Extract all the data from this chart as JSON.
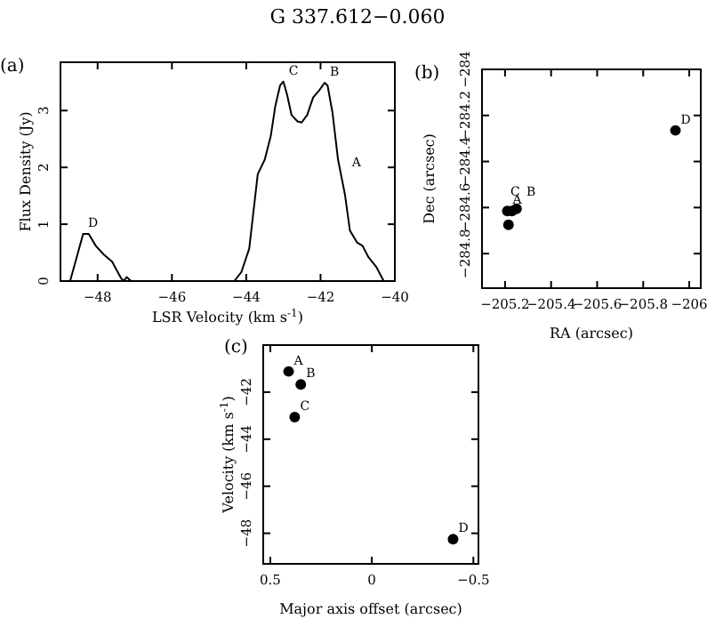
{
  "chart_data": [
    {
      "type": "line",
      "title": "G 337.612−0.060",
      "xlabel": "LSR Velocity (km s$^{-1}$)",
      "ylabel": "Flux Density (Jy)",
      "xlim": [
        -49,
        -40
      ],
      "ylim": [
        0,
        3.85
      ],
      "xticks": [
        -48,
        -46,
        -44,
        -42,
        -40
      ],
      "yticks": [
        0,
        1,
        2,
        3
      ],
      "annotations": [
        "(a)",
        {
          "text": "D",
          "x": -48.4,
          "y": 0.83
        },
        {
          "text": "C",
          "x": -43.0,
          "y": 3.51
        },
        {
          "text": "B",
          "x": -41.89,
          "y": 3.49
        },
        {
          "text": "A",
          "x": -41.3,
          "y": 1.9
        }
      ],
      "series": [
        {
          "color": "#000000",
          "x": [
            -48.74,
            -48.39,
            -48.24,
            -48.05,
            -47.84,
            -47.61,
            -47.37,
            -47.3,
            -47.22,
            -47.1,
            -46.0,
            -45.0,
            -44.32,
            -44.13,
            -43.92,
            -43.69,
            -43.5,
            -43.34,
            -43.22,
            -43.09,
            -43.0,
            -42.9,
            -42.78,
            -42.62,
            -42.51,
            -42.36,
            -42.2,
            -42.04,
            -41.89,
            -41.81,
            -41.68,
            -41.53,
            -41.34,
            -41.21,
            -41.02,
            -40.87,
            -40.71,
            -40.5,
            -40.3
          ],
          "values": [
            0,
            0.83,
            0.83,
            0.62,
            0.47,
            0.34,
            0.05,
            0,
            0.07,
            0,
            0,
            0,
            0,
            0.16,
            0.57,
            1.88,
            2.14,
            2.55,
            3.07,
            3.44,
            3.51,
            3.28,
            2.92,
            2.81,
            2.79,
            2.92,
            3.23,
            3.35,
            3.49,
            3.44,
            2.97,
            2.14,
            1.51,
            0.89,
            0.68,
            0.62,
            0.42,
            0.25,
            0
          ]
        }
      ]
    },
    {
      "type": "scatter",
      "xlabel": "RA (arcsec)",
      "ylabel": "Dec (arcsec)",
      "xlim": [
        -205.1,
        -206.05
      ],
      "ylim": [
        -284.95,
        -284
      ],
      "xticks": [
        -205.2,
        -205.4,
        -205.6,
        -205.8,
        -206
      ],
      "yticks": [
        -284.8,
        -284.6,
        -284.4,
        -284.2,
        -284
      ],
      "marker": "circle",
      "annotations": [
        "(b)",
        {
          "text": "C",
          "x": -205.2,
          "y": -284.58
        },
        {
          "text": "B",
          "x": -205.27,
          "y": -284.58
        },
        {
          "text": "A",
          "x": -205.21,
          "y": -284.615
        },
        {
          "text": "D",
          "x": -205.94,
          "y": -284.265
        }
      ],
      "series": [
        {
          "color": "#000000",
          "x": [
            -205.21,
            -205.23,
            -205.25,
            -205.215,
            -205.94
          ],
          "values": [
            -284.615,
            -284.615,
            -284.605,
            -284.675,
            -284.265
          ]
        }
      ]
    },
    {
      "type": "scatter",
      "xlabel": "Major axis offset (arcsec)",
      "ylabel": "Velocity (km s$^{-1}$)",
      "xlim": [
        0.535,
        -0.525
      ],
      "ylim": [
        -49.3,
        -40
      ],
      "xticks": [
        0.5,
        0,
        -0.5
      ],
      "yticks": [
        -48,
        -46,
        -44,
        -42
      ],
      "marker": "circle",
      "annotations": [
        "(c)",
        {
          "text": "A",
          "x": 0.41,
          "y": -41.12
        },
        {
          "text": "B",
          "x": 0.35,
          "y": -41.67
        },
        {
          "text": "C",
          "x": 0.38,
          "y": -43.06
        },
        {
          "text": "D",
          "x": -0.4,
          "y": -48.25
        }
      ],
      "series": [
        {
          "color": "#000000",
          "x": [
            0.41,
            0.35,
            0.38,
            -0.4
          ],
          "values": [
            -41.12,
            -41.67,
            -43.06,
            -48.25
          ]
        }
      ]
    }
  ]
}
